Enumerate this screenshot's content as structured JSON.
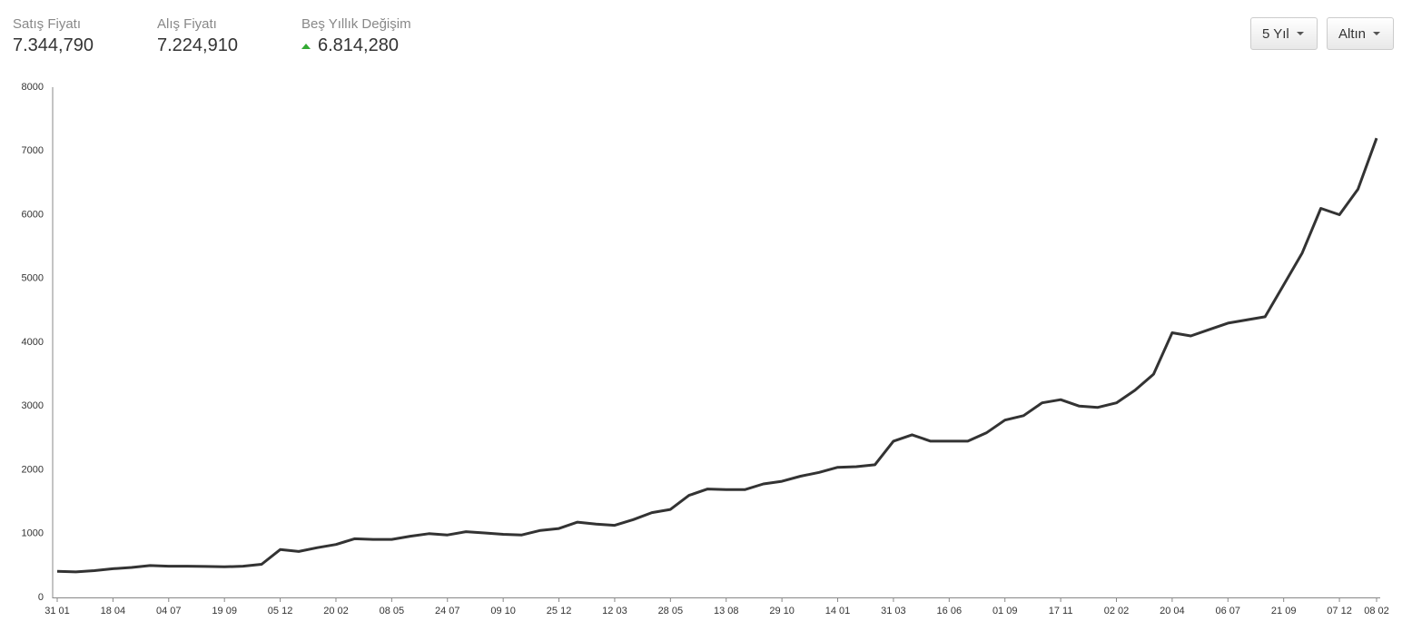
{
  "header": {
    "stats": [
      {
        "label": "Satış Fiyatı",
        "value": "7.344,790"
      },
      {
        "label": "Alış Fiyatı",
        "value": "7.224,910"
      },
      {
        "label": "Beş Yıllık Değişim",
        "value": "6.814,280"
      }
    ]
  },
  "controls": {
    "period": "5 Yıl",
    "asset": "Altın"
  },
  "chart_data": {
    "type": "line",
    "color": "#333333",
    "categories": [
      "31 01",
      null,
      null,
      "18 04",
      null,
      null,
      "04 07",
      null,
      null,
      "19 09",
      null,
      null,
      "05 12",
      null,
      null,
      "20 02",
      null,
      null,
      "08 05",
      null,
      null,
      "24 07",
      null,
      null,
      "09 10",
      null,
      null,
      "25 12",
      null,
      null,
      "12 03",
      null,
      null,
      "28 05",
      null,
      null,
      "13 08",
      null,
      null,
      "29 10",
      null,
      null,
      "14 01",
      null,
      null,
      "31 03",
      null,
      null,
      "16 06",
      null,
      null,
      "01 09",
      null,
      null,
      "17 11",
      null,
      null,
      "02 02",
      null,
      null,
      "20 04",
      null,
      null,
      "06 07",
      null,
      null,
      "21 09",
      null,
      null,
      "07 12",
      null,
      "08 02"
    ],
    "values": [
      410,
      400,
      420,
      450,
      470,
      500,
      490,
      490,
      485,
      480,
      490,
      520,
      750,
      720,
      780,
      830,
      920,
      910,
      910,
      960,
      1000,
      980,
      1030,
      1010,
      990,
      980,
      1050,
      1080,
      1180,
      1150,
      1130,
      1220,
      1330,
      1380,
      1600,
      1700,
      1690,
      1690,
      1780,
      1820,
      1900,
      1960,
      2040,
      2050,
      2080,
      2450,
      2550,
      2450,
      2450,
      2450,
      2580,
      2780,
      2850,
      3050,
      3100,
      3000,
      2980,
      3050,
      3250,
      3500,
      4150,
      4100,
      4200,
      4300,
      4350,
      4400,
      4900,
      5400,
      6100,
      6000,
      6400,
      7200
    ],
    "ylim": [
      0,
      8000
    ],
    "yticks": [
      0,
      1000,
      2000,
      3000,
      4000,
      5000,
      6000,
      7000,
      8000
    ]
  }
}
